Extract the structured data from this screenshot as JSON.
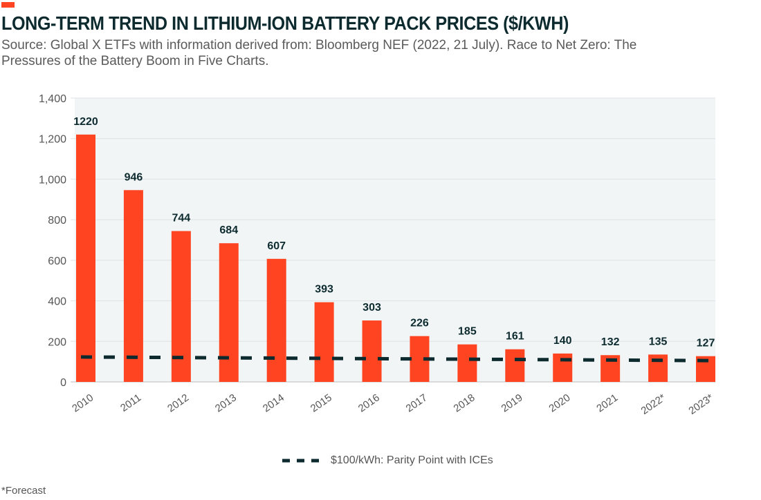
{
  "title": "LONG-TERM TREND IN LITHIUM-ION BATTERY PACK PRICES ($/KWH)",
  "subtitle": "Source: Global X ETFs with information derived from: Bloomberg NEF (2022, 21 July). Race to Net Zero: The Pressures of the Battery Boom in Five Charts.",
  "footnote": "*Forecast",
  "chart_data": {
    "type": "bar",
    "categories": [
      "2010",
      "2011",
      "2012",
      "2013",
      "2014",
      "2015",
      "2016",
      "2017",
      "2018",
      "2019",
      "2020",
      "2021",
      "2022*",
      "2023*"
    ],
    "values": [
      1220,
      946,
      744,
      684,
      607,
      393,
      303,
      226,
      185,
      161,
      140,
      132,
      135,
      127
    ],
    "data_labels": [
      "1220",
      "946",
      "744",
      "684",
      "607",
      "393",
      "303",
      "226",
      "185",
      "161",
      "140",
      "132",
      "135",
      "127"
    ],
    "yticks": [
      "0",
      "200",
      "400",
      "600",
      "800",
      "1,000",
      "1,200",
      "1,400"
    ],
    "ylim": [
      0,
      1400
    ],
    "grid": true,
    "bar_color": "#ff4422",
    "line_series": {
      "name": "$100/kWh: Parity Point with ICEs",
      "style": "dashed",
      "color": "#0d2b2f",
      "start": 123,
      "end": 105
    },
    "legend_position": "bottom"
  }
}
